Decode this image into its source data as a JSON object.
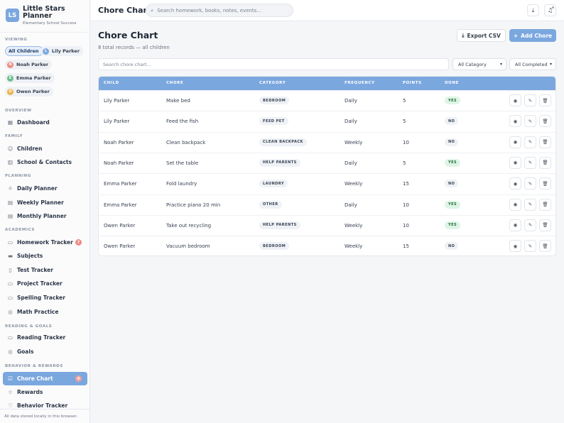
{
  "brand": {
    "logo": "LS",
    "title": "Little Stars Planner",
    "subtitle": "Elementary School Success"
  },
  "viewing": {
    "label": "VIEWING",
    "chips": [
      {
        "label": "All Children",
        "initial": "",
        "color": "",
        "active": true
      },
      {
        "label": "Lily Parker",
        "initial": "L",
        "color": "#7ba7df",
        "active": false
      },
      {
        "label": "Noah Parker",
        "initial": "N",
        "color": "#f28b82",
        "active": false
      },
      {
        "label": "Emma Parker",
        "initial": "E",
        "color": "#6fbf8e",
        "active": false
      },
      {
        "label": "Owen Parker",
        "initial": "O",
        "color": "#f0b44c",
        "active": false
      }
    ]
  },
  "nav": {
    "sections": [
      "OVERVIEW",
      "FAMILY",
      "PLANNING",
      "ACADEMICS",
      "READING & GOALS",
      "BEHAVIOR & REWARDS"
    ],
    "items": [
      {
        "label": "Dashboard",
        "icon": "grid-icon"
      },
      {
        "label": "Children",
        "icon": "smile-icon"
      },
      {
        "label": "School & Contacts",
        "icon": "building-icon"
      },
      {
        "label": "Daily Planner",
        "icon": "sun-icon"
      },
      {
        "label": "Weekly Planner",
        "icon": "calendar-icon"
      },
      {
        "label": "Monthly Planner",
        "icon": "calendar-icon"
      },
      {
        "label": "Homework Tracker",
        "icon": "book-icon",
        "badge": "7"
      },
      {
        "label": "Subjects",
        "icon": "layers-icon"
      },
      {
        "label": "Test Tracker",
        "icon": "file-icon"
      },
      {
        "label": "Project Tracker",
        "icon": "folder-icon"
      },
      {
        "label": "Spelling Tracker",
        "icon": "book-icon"
      },
      {
        "label": "Math Practice",
        "icon": "target-icon"
      },
      {
        "label": "Reading Tracker",
        "icon": "book-icon"
      },
      {
        "label": "Goals",
        "icon": "target-icon"
      },
      {
        "label": "Chore Chart",
        "icon": "check-square-icon",
        "badge": "4",
        "active": true
      },
      {
        "label": "Rewards",
        "icon": "star-icon"
      },
      {
        "label": "Behavior Tracker",
        "icon": "heart-icon"
      }
    ]
  },
  "footer_note": "All data stored locally in this browser.",
  "topbar": {
    "title": "Chore Chart",
    "search_placeholder": "Search homework, books, notes, events..."
  },
  "page": {
    "title": "Chore Chart",
    "subtitle": "8 total records — all children",
    "export_label": "Export CSV",
    "add_label": "Add Chore"
  },
  "filters": {
    "search_placeholder": "Search chore chart...",
    "category_selected": "All Category",
    "completed_selected": "All Completed"
  },
  "table": {
    "columns": [
      "CHILD",
      "CHORE",
      "CATEGORY",
      "FREQUENCY",
      "POINTS",
      "DONE"
    ],
    "rows": [
      {
        "child": "Lily Parker",
        "chore": "Make bed",
        "category": "BEDROOM",
        "frequency": "Daily",
        "points": "5",
        "done": "YES"
      },
      {
        "child": "Lily Parker",
        "chore": "Feed the fish",
        "category": "FEED PET",
        "frequency": "Daily",
        "points": "5",
        "done": "NO"
      },
      {
        "child": "Noah Parker",
        "chore": "Clean backpack",
        "category": "CLEAN BACKPACK",
        "frequency": "Weekly",
        "points": "10",
        "done": "NO"
      },
      {
        "child": "Noah Parker",
        "chore": "Set the table",
        "category": "HELP PARENTS",
        "frequency": "Daily",
        "points": "5",
        "done": "YES"
      },
      {
        "child": "Emma Parker",
        "chore": "Fold laundry",
        "category": "LAUNDRY",
        "frequency": "Weekly",
        "points": "15",
        "done": "NO"
      },
      {
        "child": "Emma Parker",
        "chore": "Practice piano 20 min",
        "category": "OTHER",
        "frequency": "Daily",
        "points": "10",
        "done": "YES"
      },
      {
        "child": "Owen Parker",
        "chore": "Take out recycling",
        "category": "HELP PARENTS",
        "frequency": "Weekly",
        "points": "10",
        "done": "YES"
      },
      {
        "child": "Owen Parker",
        "chore": "Vacuum bedroom",
        "category": "BEDROOM",
        "frequency": "Weekly",
        "points": "15",
        "done": "NO"
      }
    ]
  },
  "colors": {
    "accent": "#7ba7df",
    "badge": "#f28b82",
    "yes_bg": "#def5e6",
    "yes_text": "#256b3e"
  }
}
